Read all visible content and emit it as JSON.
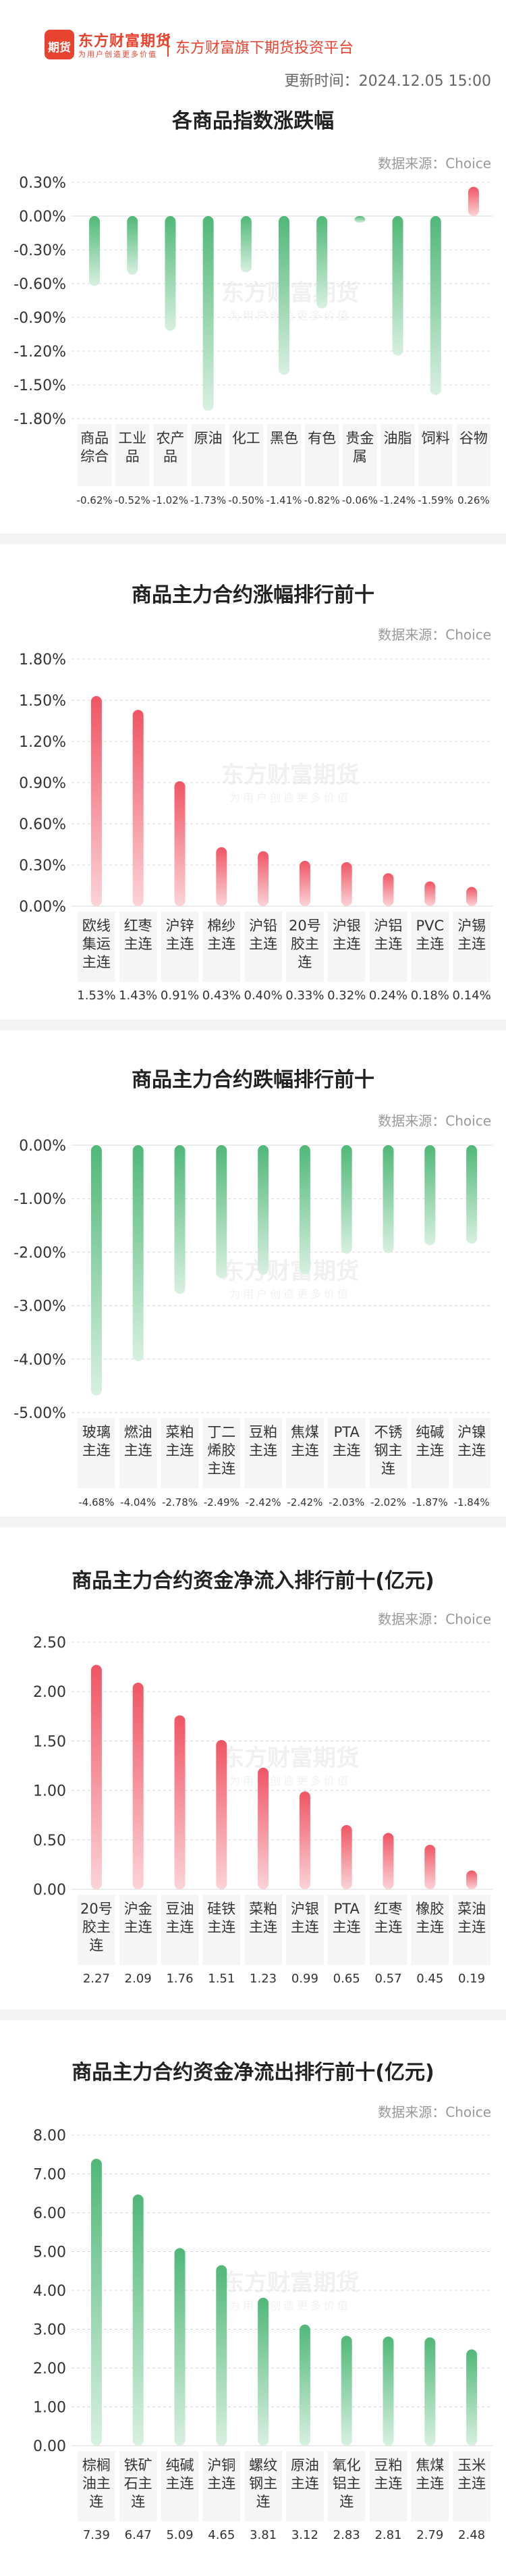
{
  "header": {
    "brand_name": "东方财富期货",
    "brand_slogan": "为用户创造更多价值",
    "logo_glyph": "期货",
    "platform": "东方财富旗下期货投资平台",
    "update_time": "更新时间：2024.12.05 15:00"
  },
  "watermark": {
    "name": "东方财富期货",
    "slogan": "为用户创造更多价值"
  },
  "colors": {
    "up": "#f05564",
    "down": "#50b878",
    "grid": "#d8d8d8",
    "label_bg": "#f5f5f5"
  },
  "sections": [
    {
      "title": "各商品指数涨跌幅",
      "source": "数据来源：Choice"
    },
    {
      "title": "商品主力合约涨幅排行前十",
      "source": "数据来源：Choice"
    },
    {
      "title": "商品主力合约跌幅排行前十",
      "source": "数据来源：Choice"
    },
    {
      "title": "商品主力合约资金净流入排行前十(亿元)",
      "source": "数据来源：Choice"
    },
    {
      "title": "商品主力合约资金净流出排行前十(亿元)",
      "source": "数据来源：Choice"
    }
  ],
  "chart_data": [
    {
      "type": "bar",
      "title": "各商品指数涨跌幅",
      "categories": [
        "商品综合",
        "工业品",
        "农产品",
        "原油",
        "化工",
        "黑色",
        "有色",
        "贵金属",
        "油脂",
        "饲料",
        "谷物"
      ],
      "values": [
        -0.62,
        -0.52,
        -1.02,
        -1.73,
        -0.5,
        -1.41,
        -0.82,
        -0.06,
        -1.24,
        -1.59,
        0.26
      ],
      "value_labels": [
        "-0.62%",
        "-0.52%",
        "-1.02%",
        "-1.73%",
        "-0.50%",
        "-1.41%",
        "-0.82%",
        "-0.06%",
        "-1.24%",
        "-1.59%",
        "0.26%"
      ],
      "yticks": [
        "0.30%",
        "0.00%",
        "-0.30%",
        "-0.60%",
        "-0.90%",
        "-1.20%",
        "-1.50%",
        "-1.80%"
      ],
      "ylim": [
        -1.8,
        0.3
      ],
      "grid": true
    },
    {
      "type": "bar",
      "title": "商品主力合约涨幅排行前十",
      "categories": [
        "欧线集运主连",
        "红枣主连",
        "沪锌主连",
        "棉纱主连",
        "沪铅主连",
        "20号胶主连",
        "沪银主连",
        "沪铝主连",
        "PVC主连",
        "沪锡主连"
      ],
      "values": [
        1.53,
        1.43,
        0.91,
        0.43,
        0.4,
        0.33,
        0.32,
        0.24,
        0.18,
        0.14
      ],
      "value_labels": [
        "1.53%",
        "1.43%",
        "0.91%",
        "0.43%",
        "0.40%",
        "0.33%",
        "0.32%",
        "0.24%",
        "0.18%",
        "0.14%"
      ],
      "yticks": [
        "1.80%",
        "1.50%",
        "1.20%",
        "0.90%",
        "0.60%",
        "0.30%",
        "0.00%"
      ],
      "ylim": [
        0,
        1.8
      ],
      "grid": true
    },
    {
      "type": "bar",
      "title": "商品主力合约跌幅排行前十",
      "categories": [
        "玻璃主连",
        "燃油主连",
        "菜粕主连",
        "丁二烯胶主连",
        "豆粕主连",
        "焦煤主连",
        "PTA主连",
        "不锈钢主连",
        "纯碱主连",
        "沪镍主连"
      ],
      "values": [
        -4.68,
        -4.04,
        -2.78,
        -2.49,
        -2.42,
        -2.42,
        -2.03,
        -2.02,
        -1.87,
        -1.84
      ],
      "value_labels": [
        "-4.68%",
        "-4.04%",
        "-2.78%",
        "-2.49%",
        "-2.42%",
        "-2.42%",
        "-2.03%",
        "-2.02%",
        "-1.87%",
        "-1.84%"
      ],
      "yticks": [
        "0.00%",
        "-1.00%",
        "-2.00%",
        "-3.00%",
        "-4.00%",
        "-5.00%"
      ],
      "ylim": [
        -5,
        0
      ],
      "grid": true
    },
    {
      "type": "bar",
      "title": "商品主力合约资金净流入排行前十(亿元)",
      "categories": [
        "20号胶主连",
        "沪金主连",
        "豆油主连",
        "硅铁主连",
        "菜粕主连",
        "沪银主连",
        "PTA主连",
        "红枣主连",
        "橡胶主连",
        "菜油主连"
      ],
      "values": [
        2.27,
        2.09,
        1.76,
        1.51,
        1.23,
        0.99,
        0.65,
        0.57,
        0.45,
        0.19
      ],
      "value_labels": [
        "2.27",
        "2.09",
        "1.76",
        "1.51",
        "1.23",
        "0.99",
        "0.65",
        "0.57",
        "0.45",
        "0.19"
      ],
      "yticks": [
        "2.50",
        "2.00",
        "1.50",
        "1.00",
        "0.50",
        "0.00"
      ],
      "ylim": [
        0,
        2.5
      ],
      "grid": true
    },
    {
      "type": "bar",
      "title": "商品主力合约资金净流出排行前十(亿元)",
      "categories": [
        "棕榈油主连",
        "铁矿石主连",
        "纯碱主连",
        "沪铜主连",
        "螺纹钢主连",
        "原油主连",
        "氧化铝主连",
        "豆粕主连",
        "焦煤主连",
        "玉米主连"
      ],
      "values": [
        7.39,
        6.47,
        5.09,
        4.65,
        3.81,
        3.12,
        2.83,
        2.81,
        2.79,
        2.48
      ],
      "value_labels": [
        "7.39",
        "6.47",
        "5.09",
        "4.65",
        "3.81",
        "3.12",
        "2.83",
        "2.81",
        "2.79",
        "2.48"
      ],
      "yticks": [
        "8.00",
        "7.00",
        "6.00",
        "5.00",
        "4.00",
        "3.00",
        "2.00",
        "1.00",
        "0.00"
      ],
      "ylim": [
        0,
        8
      ],
      "grid": true
    }
  ]
}
